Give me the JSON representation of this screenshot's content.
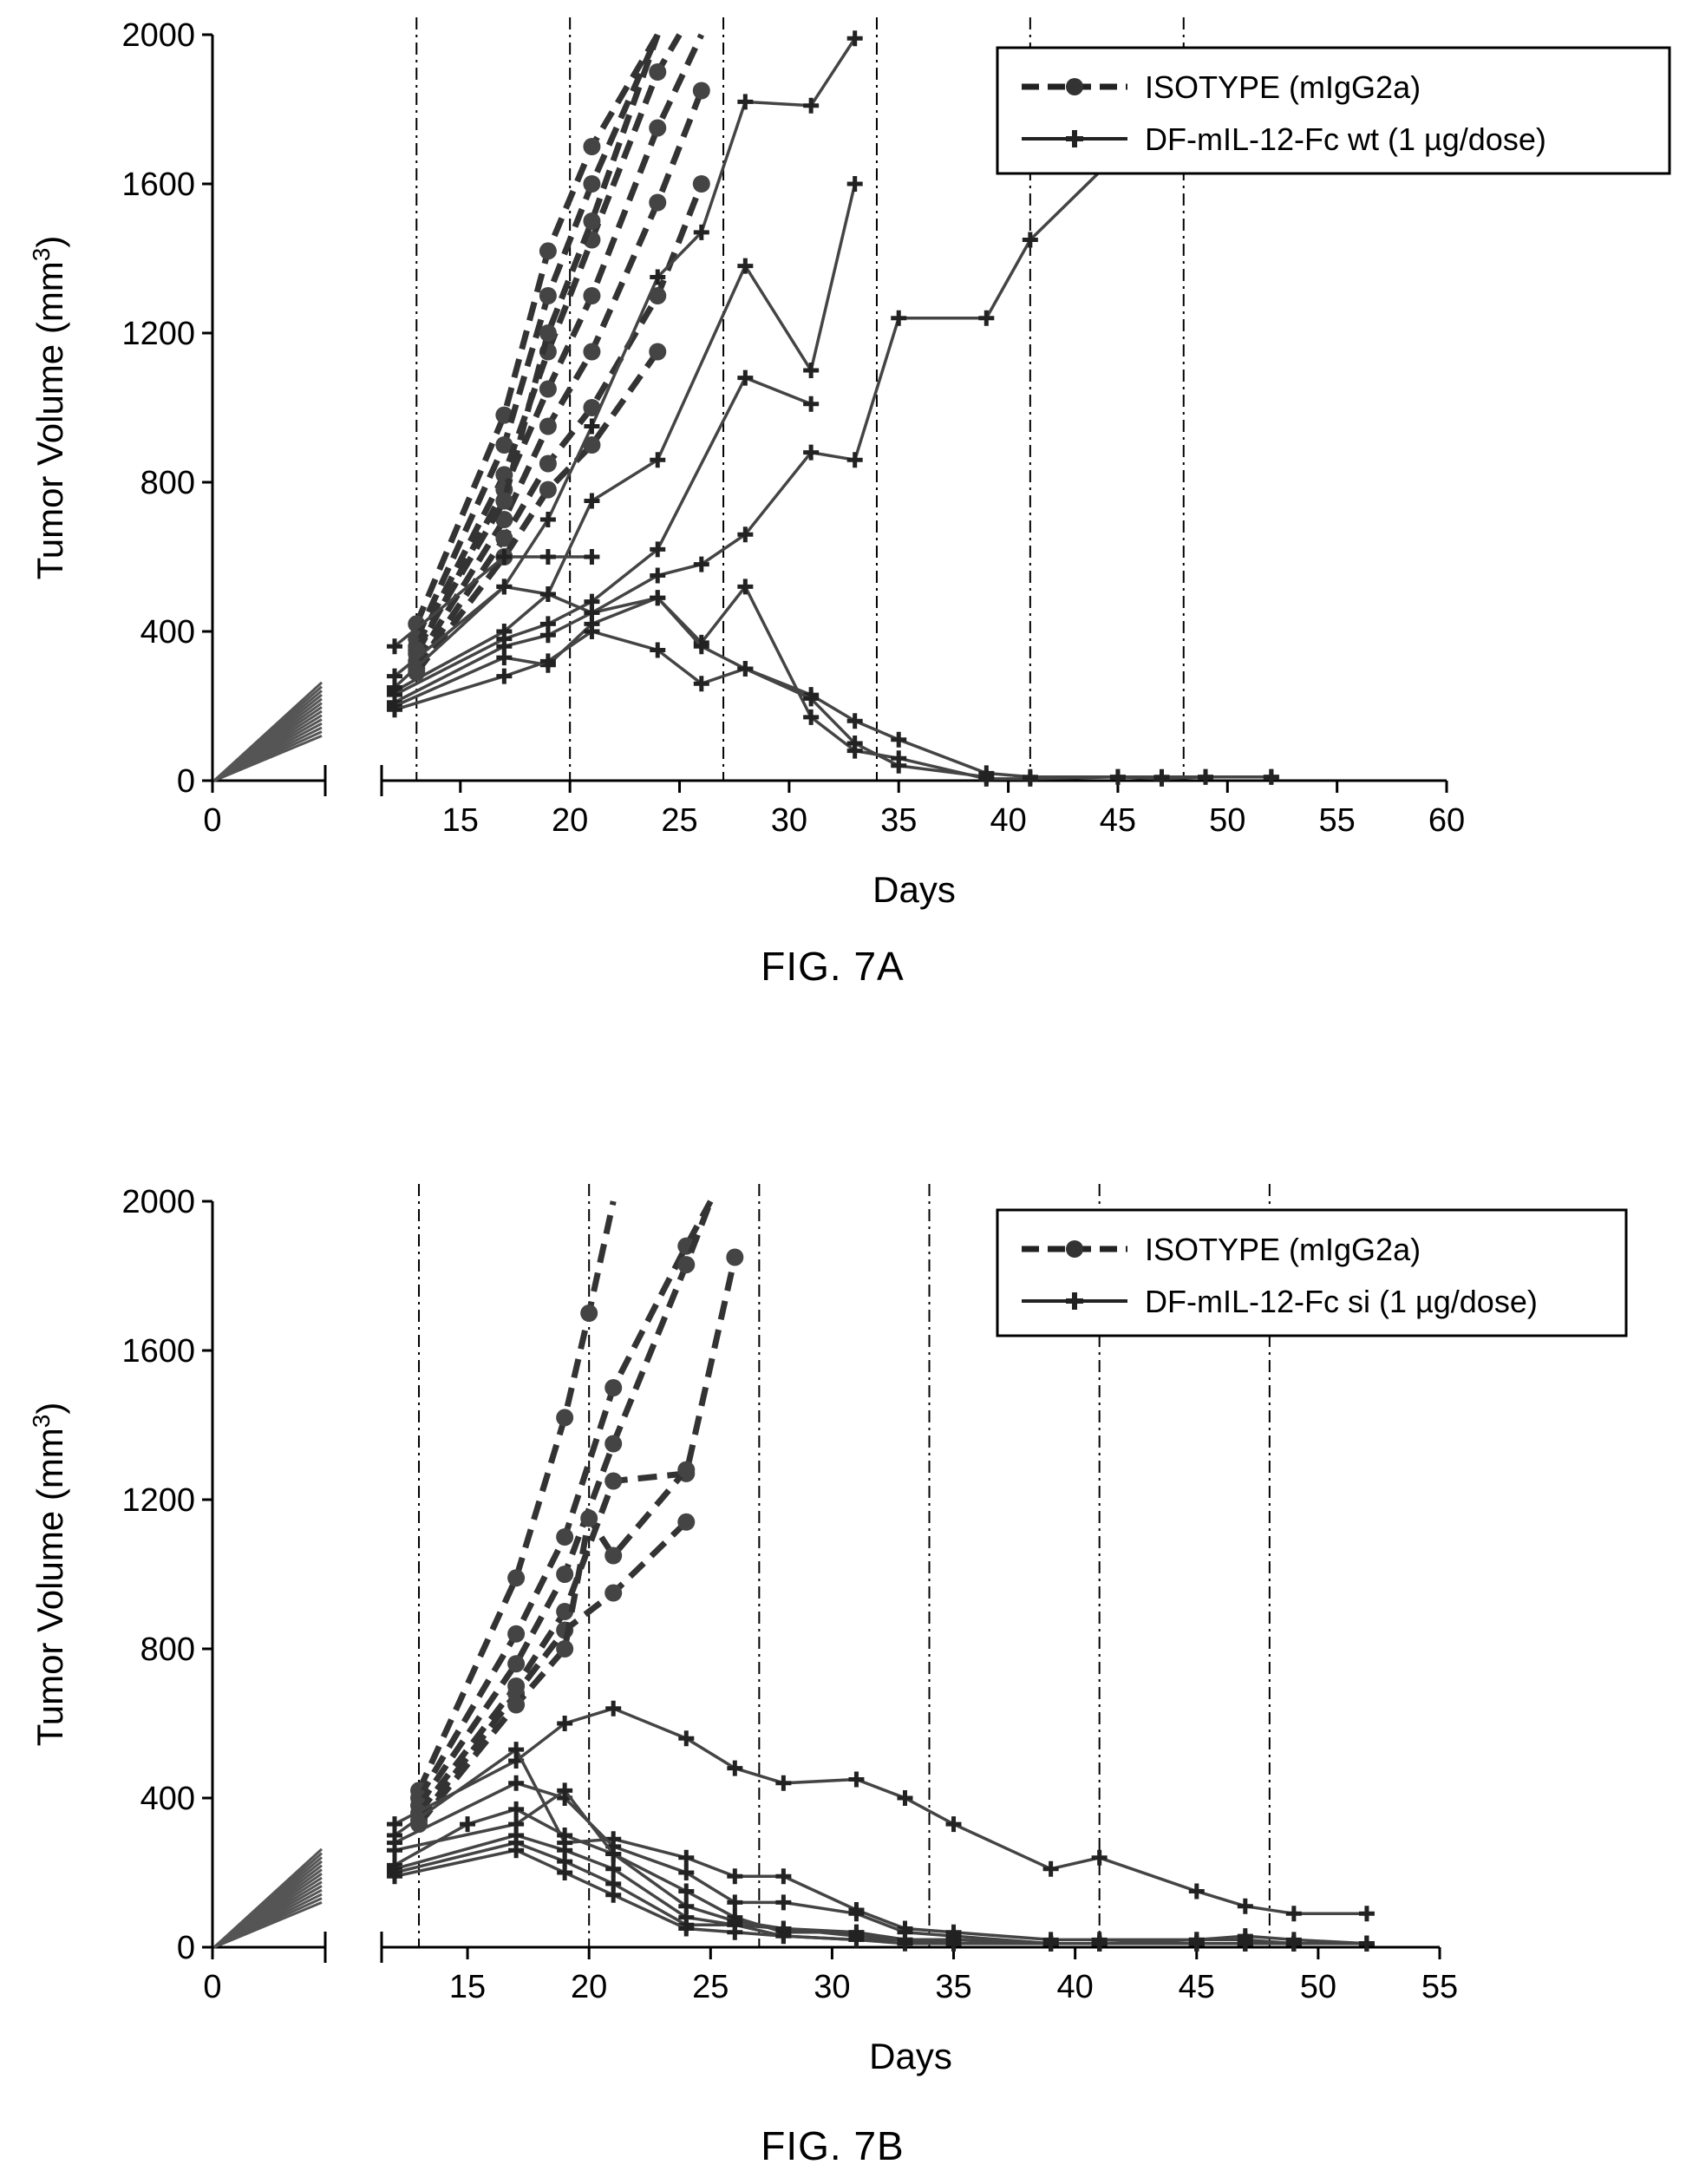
{
  "chart_data": [
    {
      "type": "line",
      "caption": "FIG. 7A",
      "xlabel": "Days",
      "ylabel": "Tumor Volume (mm3)",
      "xlim": [
        0,
        60
      ],
      "ylim": [
        0,
        2000
      ],
      "x_ticks": [
        "0",
        "15",
        "20",
        "25",
        "30",
        "35",
        "40",
        "45",
        "50",
        "55",
        "60"
      ],
      "y_ticks": [
        "0",
        "400",
        "800",
        "1200",
        "1600",
        "2000"
      ],
      "dose_days": [
        13,
        20,
        27,
        34,
        41,
        48
      ],
      "grid": false,
      "legend_position": "top-right",
      "legend": [
        {
          "label": "ISOTYPE (mIgG2a)",
          "style": "dashed",
          "marker": "circle"
        },
        {
          "label": "DF-mIL-12-Fc wt (1 µg/dose)",
          "style": "solid",
          "marker": "cross"
        }
      ],
      "series": [
        {
          "group": "isotype",
          "x": [
            13,
            17,
            19,
            21,
            24
          ],
          "y": [
            420,
            980,
            1420,
            1700,
            2000
          ]
        },
        {
          "group": "isotype",
          "x": [
            13,
            17,
            19,
            21,
            24
          ],
          "y": [
            380,
            900,
            1300,
            1600,
            2000
          ]
        },
        {
          "group": "isotype",
          "x": [
            13,
            17,
            19,
            21,
            24,
            25
          ],
          "y": [
            360,
            820,
            1150,
            1450,
            1900,
            2000
          ]
        },
        {
          "group": "isotype",
          "x": [
            13,
            17,
            19,
            21,
            24,
            26
          ],
          "y": [
            340,
            780,
            1050,
            1300,
            1750,
            2000
          ]
        },
        {
          "group": "isotype",
          "x": [
            13,
            17,
            19,
            21,
            24,
            26
          ],
          "y": [
            320,
            700,
            950,
            1150,
            1550,
            1850
          ]
        },
        {
          "group": "isotype",
          "x": [
            13,
            17,
            19,
            21,
            24,
            26
          ],
          "y": [
            300,
            650,
            850,
            1000,
            1300,
            1600
          ]
        },
        {
          "group": "isotype",
          "x": [
            13,
            17,
            19,
            21,
            24
          ],
          "y": [
            290,
            600,
            780,
            900,
            1150
          ]
        },
        {
          "group": "isotype",
          "x": [
            13,
            17,
            19,
            21,
            24
          ],
          "y": [
            350,
            750,
            1200,
            1500,
            2000
          ]
        },
        {
          "group": "treated",
          "x": [
            12,
            17,
            19,
            21
          ],
          "y": [
            360,
            600,
            600,
            600
          ]
        },
        {
          "group": "treated",
          "x": [
            12,
            17,
            19,
            21,
            24,
            26,
            28,
            31,
            33
          ],
          "y": [
            280,
            520,
            700,
            950,
            1350,
            1470,
            1820,
            1810,
            1990
          ]
        },
        {
          "group": "treated",
          "x": [
            12,
            17,
            19,
            21,
            24,
            28,
            31,
            33
          ],
          "y": [
            240,
            400,
            500,
            750,
            860,
            1380,
            1100,
            1600
          ]
        },
        {
          "group": "treated",
          "x": [
            12,
            17,
            19,
            21,
            24,
            28,
            31
          ],
          "y": [
            230,
            380,
            420,
            480,
            620,
            1080,
            1010
          ]
        },
        {
          "group": "treated",
          "x": [
            12,
            17,
            19,
            21,
            24,
            26,
            28,
            31,
            33,
            35,
            39,
            41,
            45
          ],
          "y": [
            210,
            360,
            390,
            450,
            550,
            580,
            660,
            880,
            860,
            1240,
            1240,
            1450,
            1680
          ]
        },
        {
          "group": "treated",
          "x": [
            12,
            17,
            19,
            21,
            24,
            26,
            28,
            31,
            33,
            35,
            39,
            41,
            45,
            47,
            49,
            52
          ],
          "y": [
            200,
            330,
            310,
            420,
            490,
            370,
            520,
            170,
            80,
            60,
            5,
            5,
            10,
            5,
            10,
            10
          ]
        },
        {
          "group": "treated",
          "x": [
            12,
            17,
            19,
            21,
            24,
            26,
            28,
            31,
            33,
            35,
            39,
            41,
            45,
            47,
            49,
            52
          ],
          "y": [
            190,
            280,
            320,
            400,
            350,
            260,
            300,
            230,
            160,
            110,
            20,
            10,
            10,
            10,
            10,
            10
          ]
        },
        {
          "group": "treated",
          "x": [
            12,
            17,
            19,
            21,
            24,
            26,
            28,
            31,
            33,
            35,
            39
          ],
          "y": [
            250,
            520,
            500,
            450,
            490,
            360,
            300,
            220,
            100,
            40,
            10
          ]
        }
      ]
    },
    {
      "type": "line",
      "caption": "FIG. 7B",
      "xlabel": "Days",
      "ylabel": "Tumor Volume (mm3)",
      "xlim": [
        0,
        55
      ],
      "ylim": [
        0,
        2000
      ],
      "x_ticks": [
        "0",
        "15",
        "20",
        "25",
        "30",
        "35",
        "40",
        "45",
        "50",
        "55"
      ],
      "y_ticks": [
        "0",
        "400",
        "800",
        "1200",
        "1600",
        "2000"
      ],
      "dose_days": [
        13,
        20,
        27,
        34,
        41,
        48
      ],
      "grid": false,
      "legend_position": "top-right",
      "legend": [
        {
          "label": "ISOTYPE (mIgG2a)",
          "style": "dashed",
          "marker": "circle"
        },
        {
          "label": "DF-mIL-12-Fc si (1 µg/dose)",
          "style": "solid",
          "marker": "cross"
        }
      ],
      "series": [
        {
          "group": "isotype",
          "x": [
            13,
            17,
            19,
            20,
            21
          ],
          "y": [
            420,
            990,
            1420,
            1700,
            2000
          ]
        },
        {
          "group": "isotype",
          "x": [
            13,
            17,
            19,
            21,
            24,
            25
          ],
          "y": [
            400,
            840,
            1100,
            1500,
            1880,
            2000
          ]
        },
        {
          "group": "isotype",
          "x": [
            13,
            17,
            19,
            21,
            24,
            25
          ],
          "y": [
            380,
            760,
            1000,
            1350,
            1830,
            2000
          ]
        },
        {
          "group": "isotype",
          "x": [
            13,
            17,
            19,
            21,
            24,
            26
          ],
          "y": [
            360,
            700,
            900,
            1250,
            1270,
            1850
          ]
        },
        {
          "group": "isotype",
          "x": [
            13,
            17,
            19,
            21,
            24
          ],
          "y": [
            340,
            680,
            850,
            950,
            1140
          ]
        },
        {
          "group": "isotype",
          "x": [
            13,
            17,
            19,
            20,
            21,
            24
          ],
          "y": [
            330,
            650,
            800,
            1150,
            1050,
            1280
          ]
        },
        {
          "group": "treated",
          "x": [
            12,
            17,
            19,
            21,
            24,
            26,
            28,
            31,
            33,
            35,
            39,
            41,
            45,
            47,
            49,
            52
          ],
          "y": [
            330,
            500,
            600,
            640,
            560,
            480,
            440,
            450,
            400,
            330,
            210,
            240,
            150,
            110,
            90,
            90
          ]
        },
        {
          "group": "treated",
          "x": [
            12,
            17,
            19,
            21,
            24,
            26,
            28,
            31,
            33,
            35,
            39,
            41,
            45,
            47,
            49,
            52
          ],
          "y": [
            300,
            530,
            280,
            290,
            240,
            190,
            190,
            100,
            50,
            40,
            20,
            20,
            20,
            30,
            20,
            10
          ]
        },
        {
          "group": "treated",
          "x": [
            12,
            17,
            19,
            21,
            24,
            26,
            28,
            31,
            33,
            35,
            39,
            41,
            45,
            47,
            49,
            52
          ],
          "y": [
            280,
            440,
            400,
            270,
            200,
            120,
            120,
            90,
            40,
            30,
            10,
            10,
            20,
            20,
            10,
            10
          ]
        },
        {
          "group": "treated",
          "x": [
            12,
            17,
            19,
            21,
            24,
            26,
            28,
            31,
            33,
            35,
            39,
            41,
            45,
            47,
            49,
            52
          ],
          "y": [
            260,
            330,
            420,
            250,
            150,
            80,
            40,
            40,
            20,
            20,
            10,
            10,
            10,
            10,
            10,
            10
          ]
        },
        {
          "group": "treated",
          "x": [
            12,
            15,
            17,
            19,
            21,
            24,
            26,
            28,
            31,
            33,
            35,
            39,
            41,
            45,
            47,
            49,
            52
          ],
          "y": [
            220,
            330,
            370,
            300,
            250,
            110,
            70,
            50,
            40,
            20,
            20,
            10,
            10,
            10,
            10,
            10,
            10
          ]
        },
        {
          "group": "treated",
          "x": [
            12,
            17,
            19,
            21,
            24,
            26,
            28,
            31,
            33,
            35,
            39,
            41,
            45,
            47,
            49,
            52
          ],
          "y": [
            210,
            300,
            260,
            210,
            80,
            60,
            30,
            20,
            20,
            10,
            10,
            10,
            10,
            10,
            10,
            10
          ]
        },
        {
          "group": "treated",
          "x": [
            12,
            17,
            19,
            21,
            24,
            26,
            28,
            31,
            33,
            35,
            39,
            41,
            45,
            47,
            49,
            52
          ],
          "y": [
            200,
            280,
            230,
            170,
            60,
            60,
            50,
            30,
            20,
            10,
            10,
            10,
            10,
            10,
            10,
            10
          ]
        },
        {
          "group": "treated",
          "x": [
            12,
            17,
            19,
            21,
            24,
            26,
            28,
            31,
            33,
            35,
            39,
            41,
            45,
            47,
            49,
            52
          ],
          "y": [
            190,
            260,
            200,
            140,
            50,
            40,
            30,
            20,
            10,
            10,
            10,
            10,
            10,
            10,
            10,
            10
          ]
        }
      ]
    }
  ]
}
